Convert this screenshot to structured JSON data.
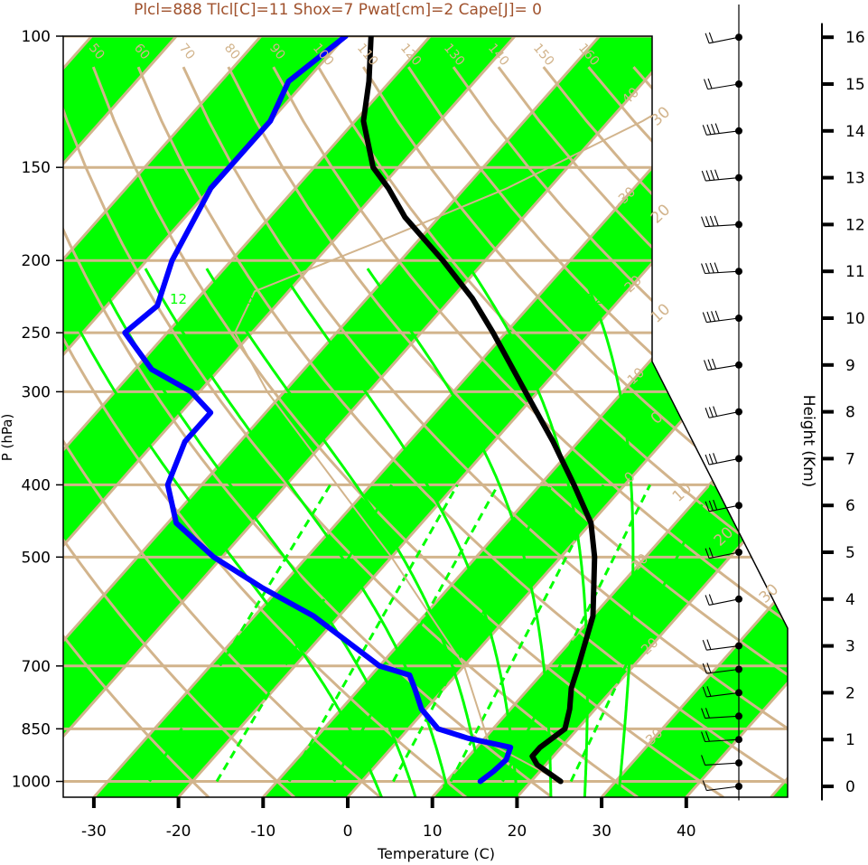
{
  "chart_data": {
    "type": "line",
    "title": "Plcl=888 Tlcl[C]=11 Shox=7 Pwat[cm]=2 Cape[J]= 0",
    "xlabel": "Temperature (C)",
    "ylabel": "P (hPa)",
    "y2label": "Height (Km)",
    "x_ticks": [
      "-30",
      "-20",
      "-10",
      "0",
      "10",
      "20",
      "30",
      "40"
    ],
    "x_tick_values": [
      -30,
      -20,
      -10,
      0,
      10,
      20,
      30,
      40
    ],
    "p_ticks": [
      "100",
      "150",
      "200",
      "250",
      "300",
      "400",
      "500",
      "700",
      "850",
      "1000"
    ],
    "p_tick_values": [
      100,
      150,
      200,
      250,
      300,
      400,
      500,
      700,
      850,
      1000
    ],
    "height_ticks": [
      "0",
      "1",
      "2",
      "3",
      "4",
      "5",
      "6",
      "7",
      "8",
      "9",
      "10",
      "11",
      "12",
      "13",
      "14",
      "15",
      "16"
    ],
    "isotherm_labels": [
      {
        "t": -40,
        "text": "-40"
      },
      {
        "t": -30,
        "text": "-30"
      },
      {
        "t": -20,
        "text": "-20"
      },
      {
        "t": -10,
        "text": "-10"
      },
      {
        "t": 0,
        "text": "0"
      },
      {
        "t": 10,
        "text": "10"
      },
      {
        "t": 20,
        "text": "20"
      },
      {
        "t": 30,
        "text": "30"
      }
    ],
    "adiabat_labels": [
      "50",
      "60",
      "70",
      "80",
      "90",
      "100",
      "110",
      "120",
      "130",
      "140",
      "150",
      "160"
    ],
    "mixing_ratio_labels": [
      "3",
      "8",
      "12",
      "16",
      "24",
      "32"
    ],
    "colors": {
      "temperature": "#000000",
      "dewpoint": "#0000ff",
      "isotherm_band": "#00ff00",
      "grid": "#d2b48c",
      "moist_adiabat": "#00ff00",
      "title": "#a0522d"
    },
    "series": [
      {
        "kind": "temperature",
        "points": [
          {
            "p": 1000,
            "t": 23.5
          },
          {
            "p": 950,
            "t": 19
          },
          {
            "p": 925,
            "t": 17.5
          },
          {
            "p": 900,
            "t": 17.5
          },
          {
            "p": 850,
            "t": 18.5
          },
          {
            "p": 800,
            "t": 17
          },
          {
            "p": 750,
            "t": 15
          },
          {
            "p": 700,
            "t": 13.5
          },
          {
            "p": 600,
            "t": 10
          },
          {
            "p": 500,
            "t": 4
          },
          {
            "p": 450,
            "t": 0
          },
          {
            "p": 400,
            "t": -6
          },
          {
            "p": 350,
            "t": -13
          },
          {
            "p": 300,
            "t": -21.5
          },
          {
            "p": 250,
            "t": -31.5
          },
          {
            "p": 225,
            "t": -37.5
          },
          {
            "p": 200,
            "t": -45
          },
          {
            "p": 175,
            "t": -54
          },
          {
            "p": 160,
            "t": -59
          },
          {
            "p": 150,
            "t": -63
          },
          {
            "p": 130,
            "t": -69
          },
          {
            "p": 115,
            "t": -72.5
          },
          {
            "p": 100,
            "t": -77
          }
        ]
      },
      {
        "kind": "dewpoint",
        "points": [
          {
            "p": 1000,
            "t": 14
          },
          {
            "p": 970,
            "t": 14.5
          },
          {
            "p": 935,
            "t": 14.8
          },
          {
            "p": 900,
            "t": 14
          },
          {
            "p": 875,
            "t": 8
          },
          {
            "p": 850,
            "t": 3.5
          },
          {
            "p": 800,
            "t": -0.5
          },
          {
            "p": 750,
            "t": -3.5
          },
          {
            "p": 720,
            "t": -5.5
          },
          {
            "p": 700,
            "t": -10
          },
          {
            "p": 600,
            "t": -23
          },
          {
            "p": 550,
            "t": -32
          },
          {
            "p": 500,
            "t": -41
          },
          {
            "p": 450,
            "t": -49
          },
          {
            "p": 400,
            "t": -54
          },
          {
            "p": 350,
            "t": -56.5
          },
          {
            "p": 320,
            "t": -56.5
          },
          {
            "p": 300,
            "t": -61
          },
          {
            "p": 280,
            "t": -68
          },
          {
            "p": 250,
            "t": -75
          },
          {
            "p": 230,
            "t": -74
          },
          {
            "p": 200,
            "t": -77
          },
          {
            "p": 160,
            "t": -80
          },
          {
            "p": 130,
            "t": -80
          },
          {
            "p": 115,
            "t": -82
          },
          {
            "p": 100,
            "t": -80
          }
        ]
      }
    ],
    "wind_barbs": [
      {
        "km": 0.0,
        "dir": 250,
        "kt": 10
      },
      {
        "km": 0.5,
        "dir": 260,
        "kt": 10
      },
      {
        "km": 1.0,
        "dir": 260,
        "kt": 15
      },
      {
        "km": 1.5,
        "dir": 260,
        "kt": 20
      },
      {
        "km": 2.0,
        "dir": 250,
        "kt": 15
      },
      {
        "km": 2.5,
        "dir": 250,
        "kt": 15
      },
      {
        "km": 3.0,
        "dir": 250,
        "kt": 15
      },
      {
        "km": 4.0,
        "dir": 240,
        "kt": 20
      },
      {
        "km": 5.0,
        "dir": 240,
        "kt": 20
      },
      {
        "km": 6.0,
        "dir": 240,
        "kt": 25
      },
      {
        "km": 7.0,
        "dir": 240,
        "kt": 25
      },
      {
        "km": 8.0,
        "dir": 240,
        "kt": 25
      },
      {
        "km": 9.0,
        "dir": 245,
        "kt": 30
      },
      {
        "km": 10.0,
        "dir": 250,
        "kt": 35
      },
      {
        "km": 11.0,
        "dir": 260,
        "kt": 40
      },
      {
        "km": 12.0,
        "dir": 260,
        "kt": 40
      },
      {
        "km": 13.0,
        "dir": 255,
        "kt": 40
      },
      {
        "km": 14.0,
        "dir": 250,
        "kt": 40
      },
      {
        "km": 15.0,
        "dir": 245,
        "kt": 20
      },
      {
        "km": 16.0,
        "dir": 240,
        "kt": 20
      }
    ]
  }
}
